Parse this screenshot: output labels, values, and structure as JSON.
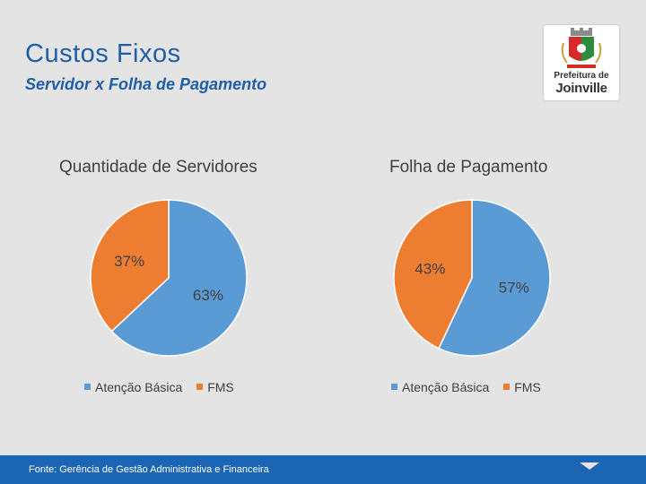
{
  "slide": {
    "title": "Custos Fixos",
    "subtitle": "Servidor x Folha de Pagamento",
    "logo": {
      "line1": "Prefeitura de",
      "line2": "Joinville"
    },
    "footer": "Fonte: Gerência de Gestão Administrativa e Financeira"
  },
  "colors": {
    "blue": "#5b9bd5",
    "orange": "#ed7d31",
    "title": "#1f5ea8",
    "footer": "#1c65b4"
  },
  "chart_data": [
    {
      "type": "pie",
      "title": "Quantidade de Servidores",
      "categories": [
        "Atenção Básica",
        "FMS"
      ],
      "values": [
        63,
        37
      ],
      "labels": [
        "63%",
        "37%"
      ],
      "colors": [
        "#5b9bd5",
        "#ed7d31"
      ],
      "legend": "bottom"
    },
    {
      "type": "pie",
      "title": "Folha de Pagamento",
      "categories": [
        "Atenção Básica",
        "FMS"
      ],
      "values": [
        57,
        43
      ],
      "labels": [
        "57%",
        "43%"
      ],
      "colors": [
        "#5b9bd5",
        "#ed7d31"
      ],
      "legend": "bottom"
    }
  ]
}
